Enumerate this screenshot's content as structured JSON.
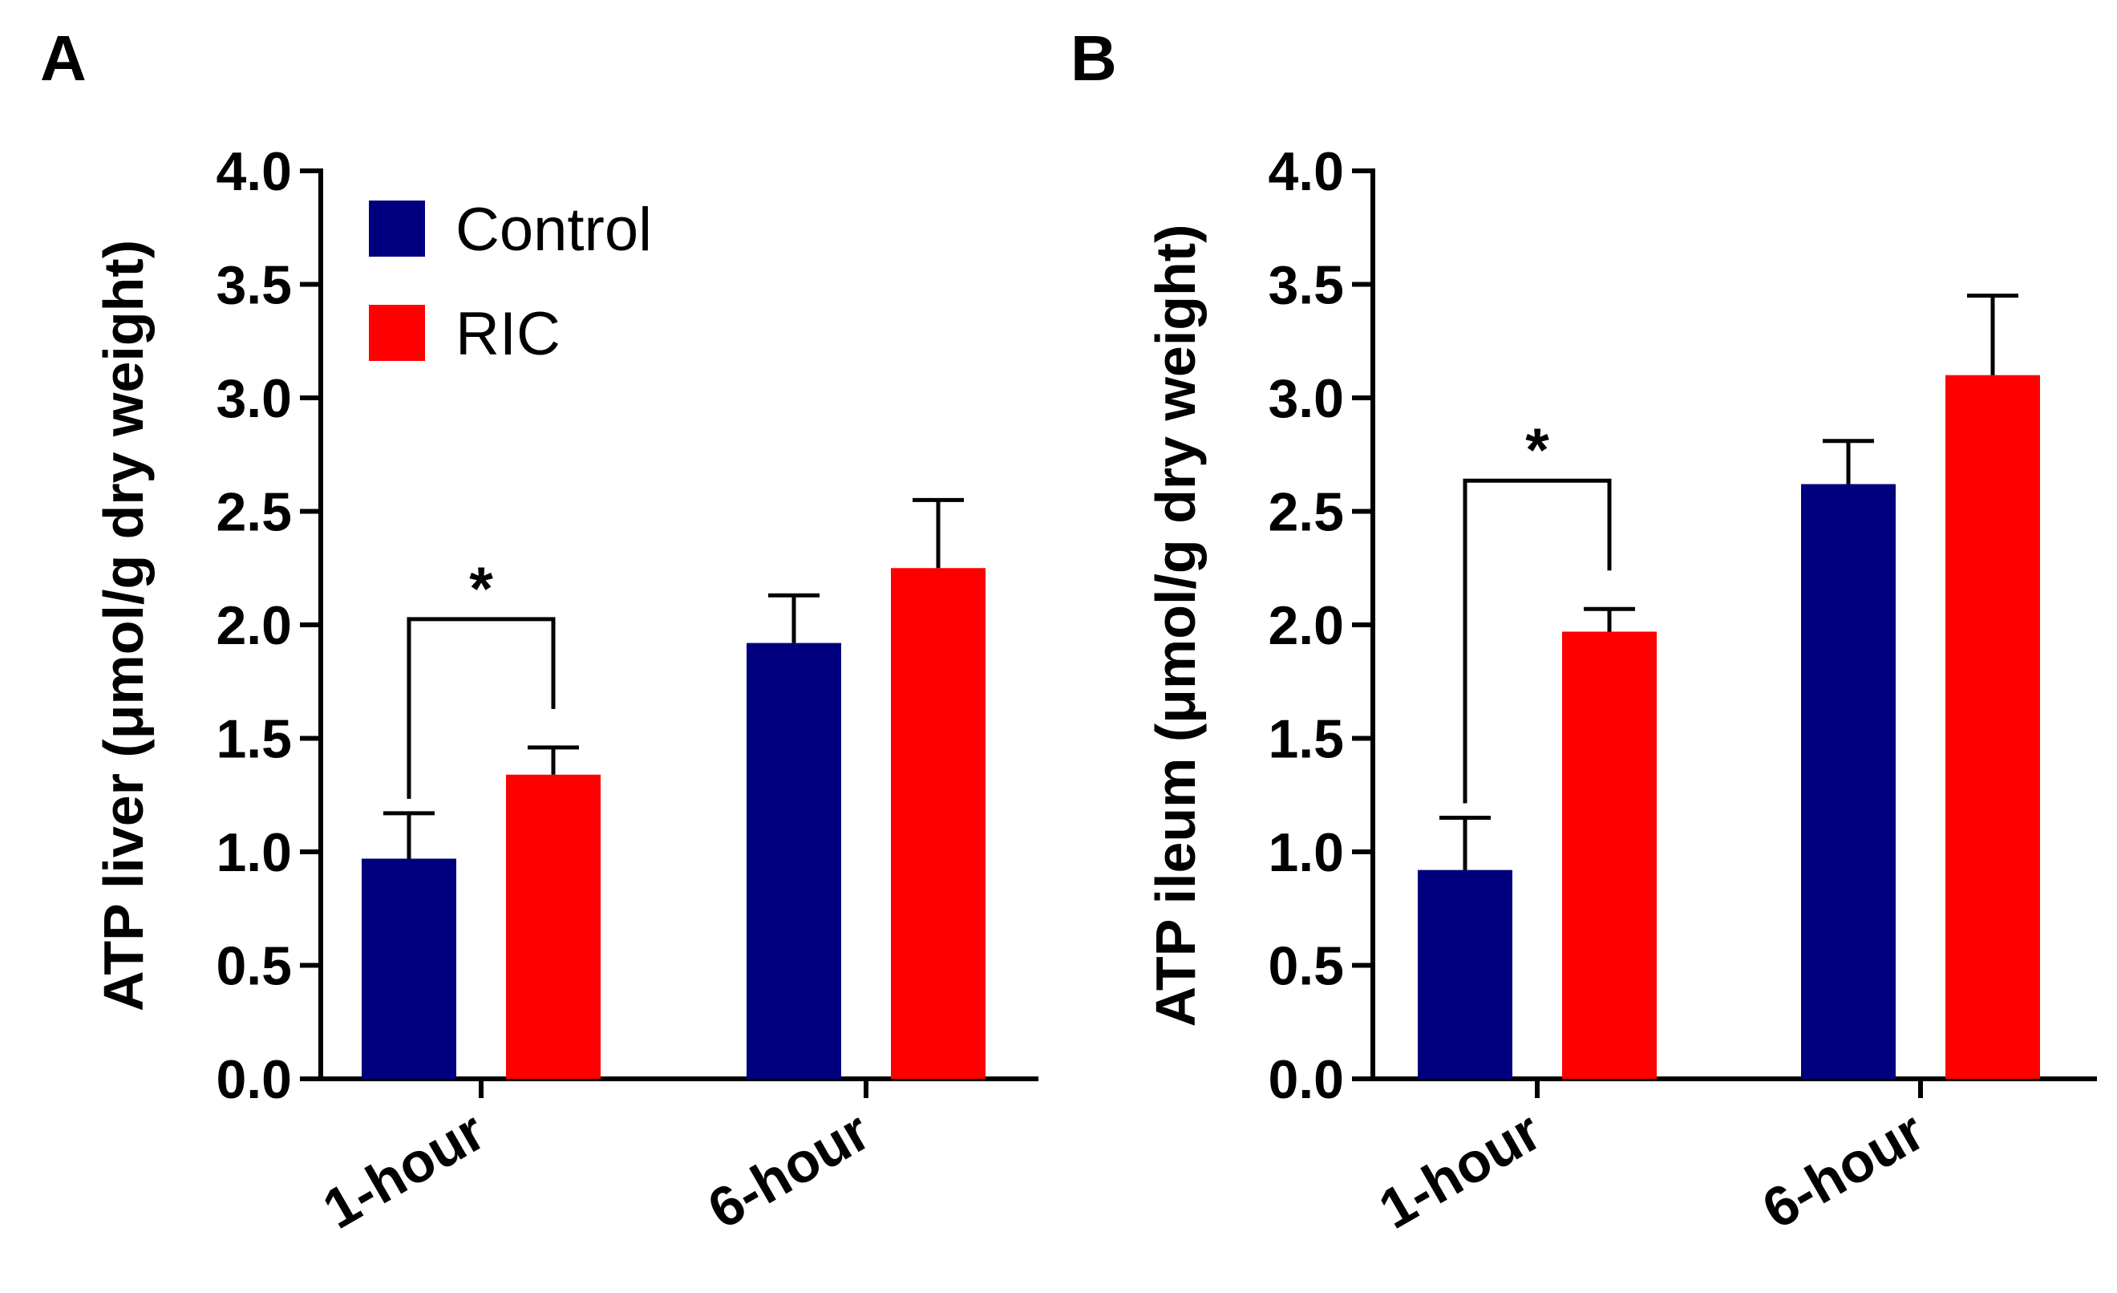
{
  "chart_data": [
    {
      "panel": "A",
      "type": "bar",
      "categories": [
        "1-hour",
        "6-hour"
      ],
      "series": [
        {
          "name": "Control",
          "color": "#00007f",
          "values": [
            0.97,
            1.92
          ],
          "errors": [
            0.2,
            0.21
          ]
        },
        {
          "name": "RIC",
          "color": "#ff0000",
          "values": [
            1.34,
            2.25
          ],
          "errors": [
            0.12,
            0.3
          ]
        }
      ],
      "ylabel": "ATP liver (μmol/g dry weight)",
      "xlabel": "",
      "ylim": [
        0,
        4.0
      ],
      "yticks": [
        "0.0",
        "0.5",
        "1.0",
        "1.5",
        "2.0",
        "2.5",
        "3.0",
        "3.5",
        "4.0"
      ],
      "legend": {
        "position": "top-left",
        "entries": [
          "Control",
          "RIC"
        ]
      },
      "significance": {
        "category": "1-hour",
        "label": "*"
      }
    },
    {
      "panel": "B",
      "type": "bar",
      "categories": [
        "1-hour",
        "6-hour"
      ],
      "series": [
        {
          "name": "Control",
          "color": "#00007f",
          "values": [
            0.92,
            2.62
          ],
          "errors": [
            0.23,
            0.19
          ]
        },
        {
          "name": "RIC",
          "color": "#ff0000",
          "values": [
            1.97,
            3.1
          ],
          "errors": [
            0.1,
            0.35
          ]
        }
      ],
      "ylabel": "ATP ileum (μmol/g dry weight)",
      "xlabel": "",
      "ylim": [
        0,
        4.0
      ],
      "yticks": [
        "0.0",
        "0.5",
        "1.0",
        "1.5",
        "2.0",
        "2.5",
        "3.0",
        "3.5",
        "4.0"
      ],
      "significance": {
        "category": "1-hour",
        "label": "*"
      }
    }
  ]
}
